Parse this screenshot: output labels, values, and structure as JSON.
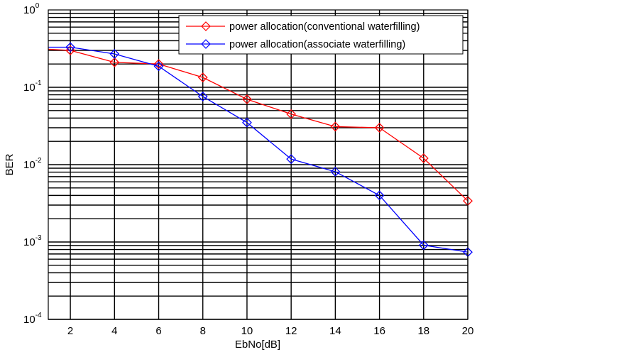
{
  "chart_data": {
    "type": "line",
    "title": "",
    "xlabel": "EbNo[dB]",
    "ylabel": "BER",
    "xlim": [
      1,
      20
    ],
    "ylim": [
      0.0001,
      1
    ],
    "yscale": "log",
    "grid": true,
    "legend_position": "top-right",
    "x_ticks": [
      2,
      4,
      6,
      8,
      10,
      12,
      14,
      16,
      18,
      20
    ],
    "x_tick_labels": [
      "2",
      "4",
      "6",
      "8",
      "10",
      "12",
      "14",
      "16",
      "18",
      "20"
    ],
    "y_ticks": [
      1,
      0.1,
      0.01,
      0.001,
      0.0001
    ],
    "y_tick_labels": [
      {
        "base": "10",
        "exp": "0"
      },
      {
        "base": "10",
        "exp": "-1"
      },
      {
        "base": "10",
        "exp": "-2"
      },
      {
        "base": "10",
        "exp": "-3"
      },
      {
        "base": "10",
        "exp": "-4"
      }
    ],
    "x": [
      1,
      2,
      4,
      6,
      8,
      10,
      12,
      14,
      16,
      18,
      20
    ],
    "series": [
      {
        "name": "power allocation(conventional waterfilling)",
        "color": "#ff0000",
        "marker": "diamond",
        "values": [
          0.31,
          0.3,
          0.21,
          0.2,
          0.134,
          0.07,
          0.045,
          0.031,
          0.03,
          0.0121,
          0.0034
        ]
      },
      {
        "name": "power allocation(associate waterfilling)",
        "color": "#0000ff",
        "marker": "diamond",
        "values": [
          0.33,
          0.33,
          0.27,
          0.187,
          0.076,
          0.035,
          0.0118,
          0.0081,
          0.004,
          0.00091,
          0.00074
        ]
      }
    ]
  }
}
